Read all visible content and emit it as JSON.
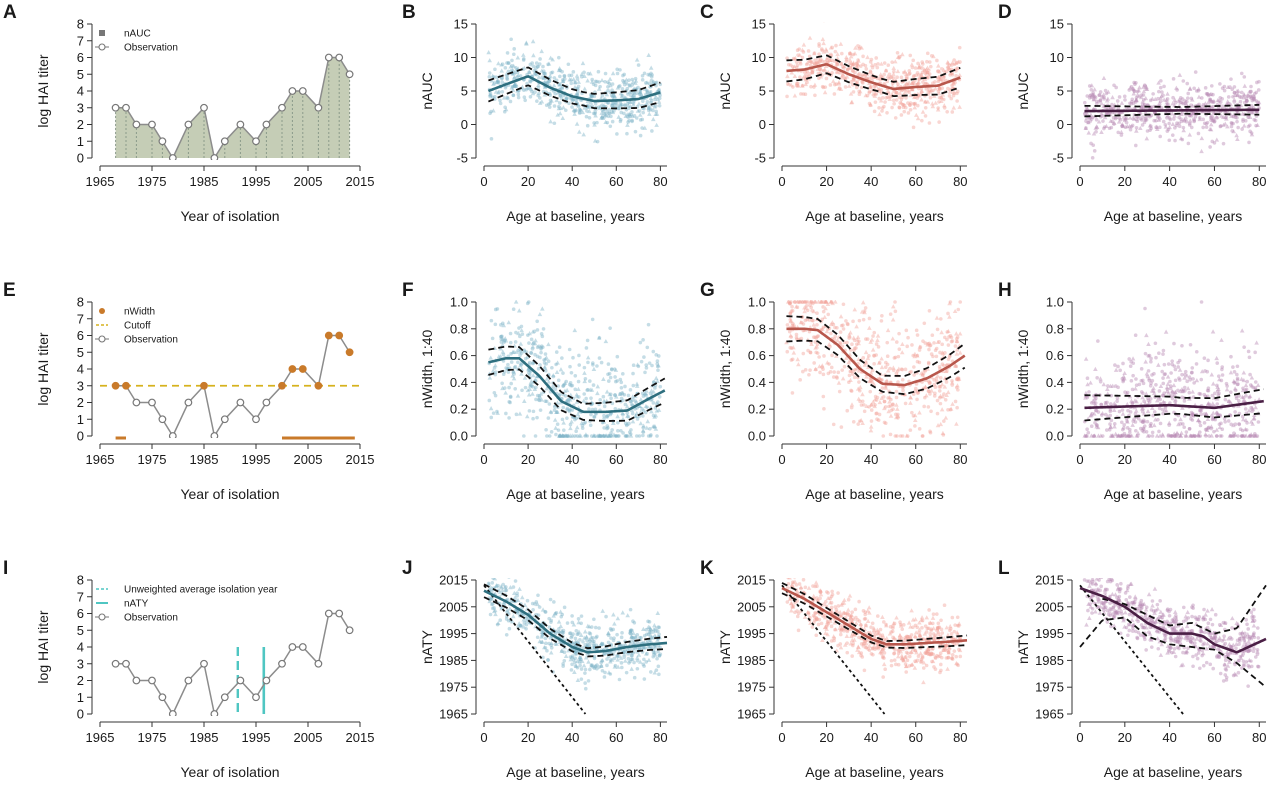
{
  "colors": {
    "teal": "#2e6f7f",
    "teal_points": "#7fb3c7",
    "salmon": "#b8574c",
    "salmon_points": "#f2a59b",
    "purple": "#4a1f45",
    "purple_points": "#b98ab4",
    "area_fill": "#c5cdb6",
    "orange": "#c97a2a",
    "yellow_dashed": "#d6b21e",
    "cyan_line": "#4fc6c2",
    "grey_line": "#8c8c8c"
  },
  "chart_data": [
    {
      "id": "A",
      "type": "area",
      "panel_label": "A",
      "xlabel": "Year of isolation",
      "ylabel": "log HAI titer",
      "xlim": [
        1965,
        2015
      ],
      "ylim": [
        0,
        8
      ],
      "xticks": [
        "1965",
        "1975",
        "1985",
        "1995",
        "2005",
        "2015"
      ],
      "yticks": [
        "0",
        "1",
        "2",
        "3",
        "4",
        "5",
        "6",
        "7",
        "8"
      ],
      "legend": [
        "nAUC",
        "Observation"
      ],
      "x": [
        1968,
        1970,
        1972,
        1975,
        1977,
        1979,
        1982,
        1985,
        1987,
        1989,
        1992,
        1995,
        1997,
        2000,
        2002,
        2004,
        2007,
        2009,
        2011,
        2013
      ],
      "values": [
        3,
        3,
        2,
        2,
        1,
        0,
        2,
        3,
        0,
        1,
        2,
        1,
        2,
        3,
        4,
        4,
        3,
        6,
        6,
        5
      ]
    },
    {
      "id": "B",
      "type": "scatter",
      "panel_label": "B",
      "xlabel": "Age at baseline, years",
      "ylabel": "nAUC",
      "xlim": [
        0,
        83
      ],
      "ylim": [
        -5,
        15
      ],
      "xticks": [
        "0",
        "20",
        "40",
        "60",
        "80"
      ],
      "yticks": [
        "-5",
        "0",
        "5",
        "10",
        "15"
      ],
      "fit": {
        "x": [
          2,
          10,
          20,
          30,
          40,
          50,
          60,
          70,
          80
        ],
        "y": [
          5,
          6,
          7.2,
          5.5,
          4.2,
          3.5,
          3.6,
          3.8,
          4.8
        ]
      },
      "ci_width": 1
    },
    {
      "id": "C",
      "type": "scatter",
      "panel_label": "C",
      "xlabel": "Age at baseline, years",
      "ylabel": "nAUC",
      "xlim": [
        0,
        83
      ],
      "ylim": [
        -5,
        15
      ],
      "xticks": [
        "0",
        "20",
        "40",
        "60",
        "80"
      ],
      "yticks": [
        "-5",
        "0",
        "5",
        "10",
        "15"
      ],
      "fit": {
        "x": [
          2,
          10,
          20,
          30,
          40,
          50,
          60,
          70,
          80
        ],
        "y": [
          8,
          8.2,
          9,
          7.5,
          6.3,
          5.3,
          5.6,
          5.8,
          7
        ]
      },
      "ci_width": 1
    },
    {
      "id": "D",
      "type": "scatter",
      "panel_label": "D",
      "xlabel": "Age at baseline, years",
      "ylabel": "nAUC",
      "xlim": [
        0,
        83
      ],
      "ylim": [
        -5,
        15
      ],
      "xticks": [
        "0",
        "20",
        "40",
        "60",
        "80"
      ],
      "yticks": [
        "-5",
        "0",
        "5",
        "10",
        "15"
      ],
      "fit": {
        "x": [
          2,
          80
        ],
        "y": [
          2,
          2.2
        ]
      },
      "ci_width": 0.5
    },
    {
      "id": "E",
      "type": "line",
      "panel_label": "E",
      "xlabel": "Year of isolation",
      "ylabel": "log HAI titer",
      "xlim": [
        1965,
        2015
      ],
      "ylim": [
        0,
        8
      ],
      "xticks": [
        "1965",
        "1975",
        "1985",
        "1995",
        "2005",
        "2015"
      ],
      "yticks": [
        "0",
        "1",
        "2",
        "3",
        "4",
        "5",
        "6",
        "7",
        "8"
      ],
      "legend": [
        "nWidth",
        "Cutoff",
        "Observation"
      ],
      "cutoff": 3,
      "x": [
        1968,
        1970,
        1972,
        1975,
        1977,
        1979,
        1982,
        1985,
        1987,
        1989,
        1992,
        1995,
        1997,
        2000,
        2002,
        2004,
        2007,
        2009,
        2011,
        2013
      ],
      "values": [
        3,
        3,
        2,
        2,
        1,
        0,
        2,
        3,
        0,
        1,
        2,
        1,
        2,
        3,
        4,
        4,
        3,
        6,
        6,
        5
      ]
    },
    {
      "id": "F",
      "type": "scatter",
      "panel_label": "F",
      "xlabel": "Age at baseline, years",
      "ylabel": "nWidth, 1:40",
      "xlim": [
        0,
        83
      ],
      "ylim": [
        0,
        1
      ],
      "xticks": [
        "0",
        "20",
        "40",
        "60",
        "80"
      ],
      "yticks": [
        "0.0",
        "0.2",
        "0.4",
        "0.6",
        "0.8",
        "1.0"
      ],
      "fit": {
        "x": [
          2,
          10,
          16,
          25,
          35,
          45,
          55,
          65,
          75,
          82
        ],
        "y": [
          0.55,
          0.58,
          0.58,
          0.45,
          0.26,
          0.18,
          0.18,
          0.19,
          0.28,
          0.34
        ]
      },
      "ci_width": 0.06
    },
    {
      "id": "G",
      "type": "scatter",
      "panel_label": "G",
      "xlabel": "Age at baseline, years",
      "ylabel": "nWidth, 1:40",
      "xlim": [
        0,
        83
      ],
      "ylim": [
        0,
        1
      ],
      "xticks": [
        "0",
        "20",
        "40",
        "60",
        "80"
      ],
      "yticks": [
        "0.0",
        "0.2",
        "0.4",
        "0.6",
        "0.8",
        "1.0"
      ],
      "fit": {
        "x": [
          2,
          10,
          16,
          25,
          35,
          45,
          55,
          65,
          75,
          82
        ],
        "y": [
          0.8,
          0.8,
          0.79,
          0.68,
          0.5,
          0.39,
          0.38,
          0.43,
          0.52,
          0.6
        ]
      },
      "ci_width": 0.06
    },
    {
      "id": "H",
      "type": "scatter",
      "panel_label": "H",
      "xlabel": "Age at baseline, years",
      "ylabel": "nWidth, 1:40",
      "xlim": [
        0,
        83
      ],
      "ylim": [
        0,
        1
      ],
      "xticks": [
        "0",
        "20",
        "40",
        "60",
        "80"
      ],
      "yticks": [
        "0.0",
        "0.2",
        "0.4",
        "0.6",
        "0.8",
        "1.0"
      ],
      "fit": {
        "x": [
          2,
          20,
          40,
          60,
          82
        ],
        "y": [
          0.21,
          0.22,
          0.23,
          0.21,
          0.26
        ]
      },
      "ci_width": 0.06
    },
    {
      "id": "I",
      "type": "line",
      "panel_label": "I",
      "xlabel": "Year of isolation",
      "ylabel": "log HAI titer",
      "xlim": [
        1965,
        2015
      ],
      "ylim": [
        0,
        8
      ],
      "xticks": [
        "1965",
        "1975",
        "1985",
        "1995",
        "2005",
        "2015"
      ],
      "yticks": [
        "0",
        "1",
        "2",
        "3",
        "4",
        "5",
        "6",
        "7",
        "8"
      ],
      "legend": [
        "Unweighted average isolation year",
        "nATY",
        "Observation"
      ],
      "unweighted_avg_year": 1991.5,
      "naty": 1996.5,
      "x": [
        1968,
        1970,
        1972,
        1975,
        1977,
        1979,
        1982,
        1985,
        1987,
        1989,
        1992,
        1995,
        1997,
        2000,
        2002,
        2004,
        2007,
        2009,
        2011,
        2013
      ],
      "values": [
        3,
        3,
        2,
        2,
        1,
        0,
        2,
        3,
        0,
        1,
        2,
        1,
        2,
        3,
        4,
        4,
        3,
        6,
        6,
        5
      ]
    },
    {
      "id": "J",
      "type": "scatter",
      "panel_label": "J",
      "xlabel": "Age at baseline, years",
      "ylabel": "nATY",
      "xlim": [
        0,
        83
      ],
      "ylim": [
        1965,
        2015
      ],
      "xticks": [
        "0",
        "20",
        "40",
        "60",
        "80"
      ],
      "yticks": [
        "1965",
        "1975",
        "1985",
        "1995",
        "2005",
        "2015"
      ],
      "birth_year_line": {
        "x": [
          0,
          46
        ],
        "y": [
          2013,
          1965
        ]
      },
      "fit": {
        "x": [
          0,
          10,
          20,
          30,
          40,
          47,
          55,
          65,
          75,
          83
        ],
        "y": [
          2011,
          2007,
          2002,
          1995,
          1990,
          1988,
          1988.5,
          1990,
          1991,
          1991.5
        ]
      },
      "ci_width": 1.5
    },
    {
      "id": "K",
      "type": "scatter",
      "panel_label": "K",
      "xlabel": "Age at baseline, years",
      "ylabel": "nATY",
      "xlim": [
        0,
        83
      ],
      "ylim": [
        1965,
        2015
      ],
      "xticks": [
        "0",
        "20",
        "40",
        "60",
        "80"
      ],
      "yticks": [
        "1965",
        "1975",
        "1985",
        "1995",
        "2005",
        "2015"
      ],
      "birth_year_line": {
        "x": [
          0,
          46
        ],
        "y": [
          2013,
          1965
        ]
      },
      "fit": {
        "x": [
          0,
          10,
          20,
          30,
          40,
          47,
          55,
          65,
          75,
          83
        ],
        "y": [
          2012,
          2008,
          2003,
          1998,
          1993,
          1991,
          1991,
          1991.5,
          1992,
          1992.5
        ]
      },
      "ci_width": 1.2
    },
    {
      "id": "L",
      "type": "scatter",
      "panel_label": "L",
      "xlabel": "Age at baseline, years",
      "ylabel": "nATY",
      "xlim": [
        0,
        83
      ],
      "ylim": [
        1965,
        2015
      ],
      "xticks": [
        "0",
        "20",
        "40",
        "60",
        "80"
      ],
      "yticks": [
        "1965",
        "1975",
        "1985",
        "1995",
        "2005",
        "2015"
      ],
      "birth_year_line": {
        "x": [
          0,
          46
        ],
        "y": [
          2013,
          1965
        ]
      },
      "fit": {
        "x": [
          0,
          10,
          20,
          30,
          40,
          50,
          55,
          60,
          70,
          83
        ],
        "y": [
          2012,
          2009,
          2005,
          1999,
          1995,
          1995,
          1994,
          1991,
          1988,
          1993
        ]
      },
      "ci_lower": {
        "x": [
          0,
          10,
          20,
          30,
          40,
          50,
          60,
          70,
          83
        ],
        "y": [
          1990,
          2000,
          2001,
          1994,
          1991,
          1990,
          1989,
          1984,
          1975
        ]
      },
      "ci_upper": {
        "x": [
          10,
          20,
          30,
          40,
          50,
          60,
          70,
          83
        ],
        "y": [
          2008,
          2006,
          2002,
          1998,
          1999,
          1995,
          1997,
          2013
        ]
      }
    }
  ]
}
